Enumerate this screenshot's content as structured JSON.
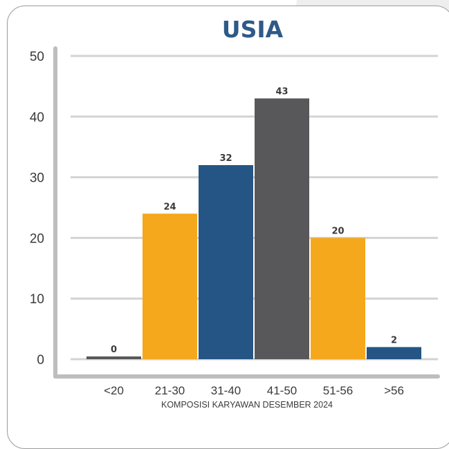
{
  "chart_data": {
    "type": "bar",
    "title": "USIA",
    "subtitle": "KOMPOSISI KARYAWAN DESEMBER 2024",
    "categories": [
      "<20",
      "21-30",
      "31-40",
      "41-50",
      "51-56",
      ">56"
    ],
    "values": [
      0,
      24,
      32,
      43,
      20,
      2
    ],
    "data_labels": [
      "0",
      "24",
      "32",
      "43",
      "20",
      "2"
    ],
    "bar_colors": [
      "#58585a",
      "#f5a81c",
      "#245585",
      "#58585a",
      "#f5a81c",
      "#245585"
    ],
    "yticks": [
      "0",
      "10",
      "20",
      "30",
      "40",
      "50"
    ],
    "ylim": [
      0,
      50
    ],
    "grid": true,
    "legend": "none"
  }
}
